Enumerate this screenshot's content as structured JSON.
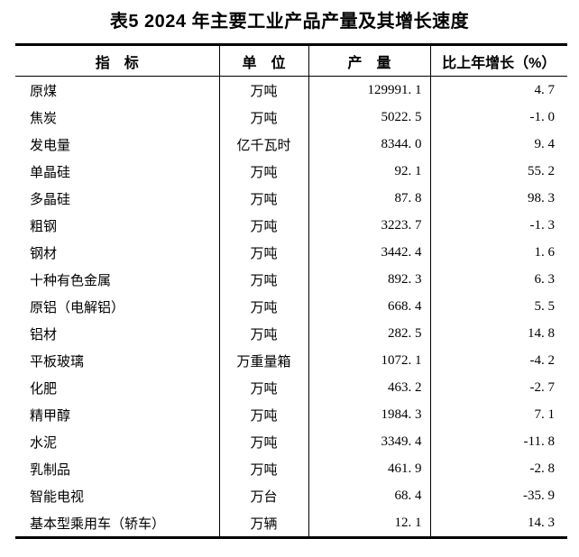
{
  "title": "表5 2024 年主要工业产品产量及其增长速度",
  "table": {
    "headers": [
      "指　标",
      "单　位",
      "产　量",
      "比上年增长（%）"
    ],
    "rows": [
      {
        "indicator": "原煤",
        "unit": "万吨",
        "output": "129991.1",
        "growth": "4.7"
      },
      {
        "indicator": "焦炭",
        "unit": "万吨",
        "output": "5022.5",
        "growth": "-1.0"
      },
      {
        "indicator": "发电量",
        "unit": "亿千瓦时",
        "output": "8344.0",
        "growth": "9.4"
      },
      {
        "indicator": "单晶硅",
        "unit": "万吨",
        "output": "92.1",
        "growth": "55.2"
      },
      {
        "indicator": "多晶硅",
        "unit": "万吨",
        "output": "87.8",
        "growth": "98.3"
      },
      {
        "indicator": "粗钢",
        "unit": "万吨",
        "output": "3223.7",
        "growth": "-1.3"
      },
      {
        "indicator": "钢材",
        "unit": "万吨",
        "output": "3442.4",
        "growth": "1.6"
      },
      {
        "indicator": "十种有色金属",
        "unit": "万吨",
        "output": "892.3",
        "growth": "6.3"
      },
      {
        "indicator": "原铝（电解铝）",
        "unit": "万吨",
        "output": "668.4",
        "growth": "5.5"
      },
      {
        "indicator": "铝材",
        "unit": "万吨",
        "output": "282.5",
        "growth": "14.8"
      },
      {
        "indicator": "平板玻璃",
        "unit": "万重量箱",
        "output": "1072.1",
        "growth": "-4.2"
      },
      {
        "indicator": "化肥",
        "unit": "万吨",
        "output": "463.2",
        "growth": "-2.7"
      },
      {
        "indicator": "精甲醇",
        "unit": "万吨",
        "output": "1984.3",
        "growth": "7.1"
      },
      {
        "indicator": "水泥",
        "unit": "万吨",
        "output": "3349.4",
        "growth": "-11.8"
      },
      {
        "indicator": "乳制品",
        "unit": "万吨",
        "output": "461.9",
        "growth": "-2.8"
      },
      {
        "indicator": "智能电视",
        "unit": "万台",
        "output": "68.4",
        "growth": "-35.9"
      },
      {
        "indicator": "基本型乘用车（轿车）",
        "unit": "万辆",
        "output": "12.1",
        "growth": "14.3"
      }
    ]
  }
}
